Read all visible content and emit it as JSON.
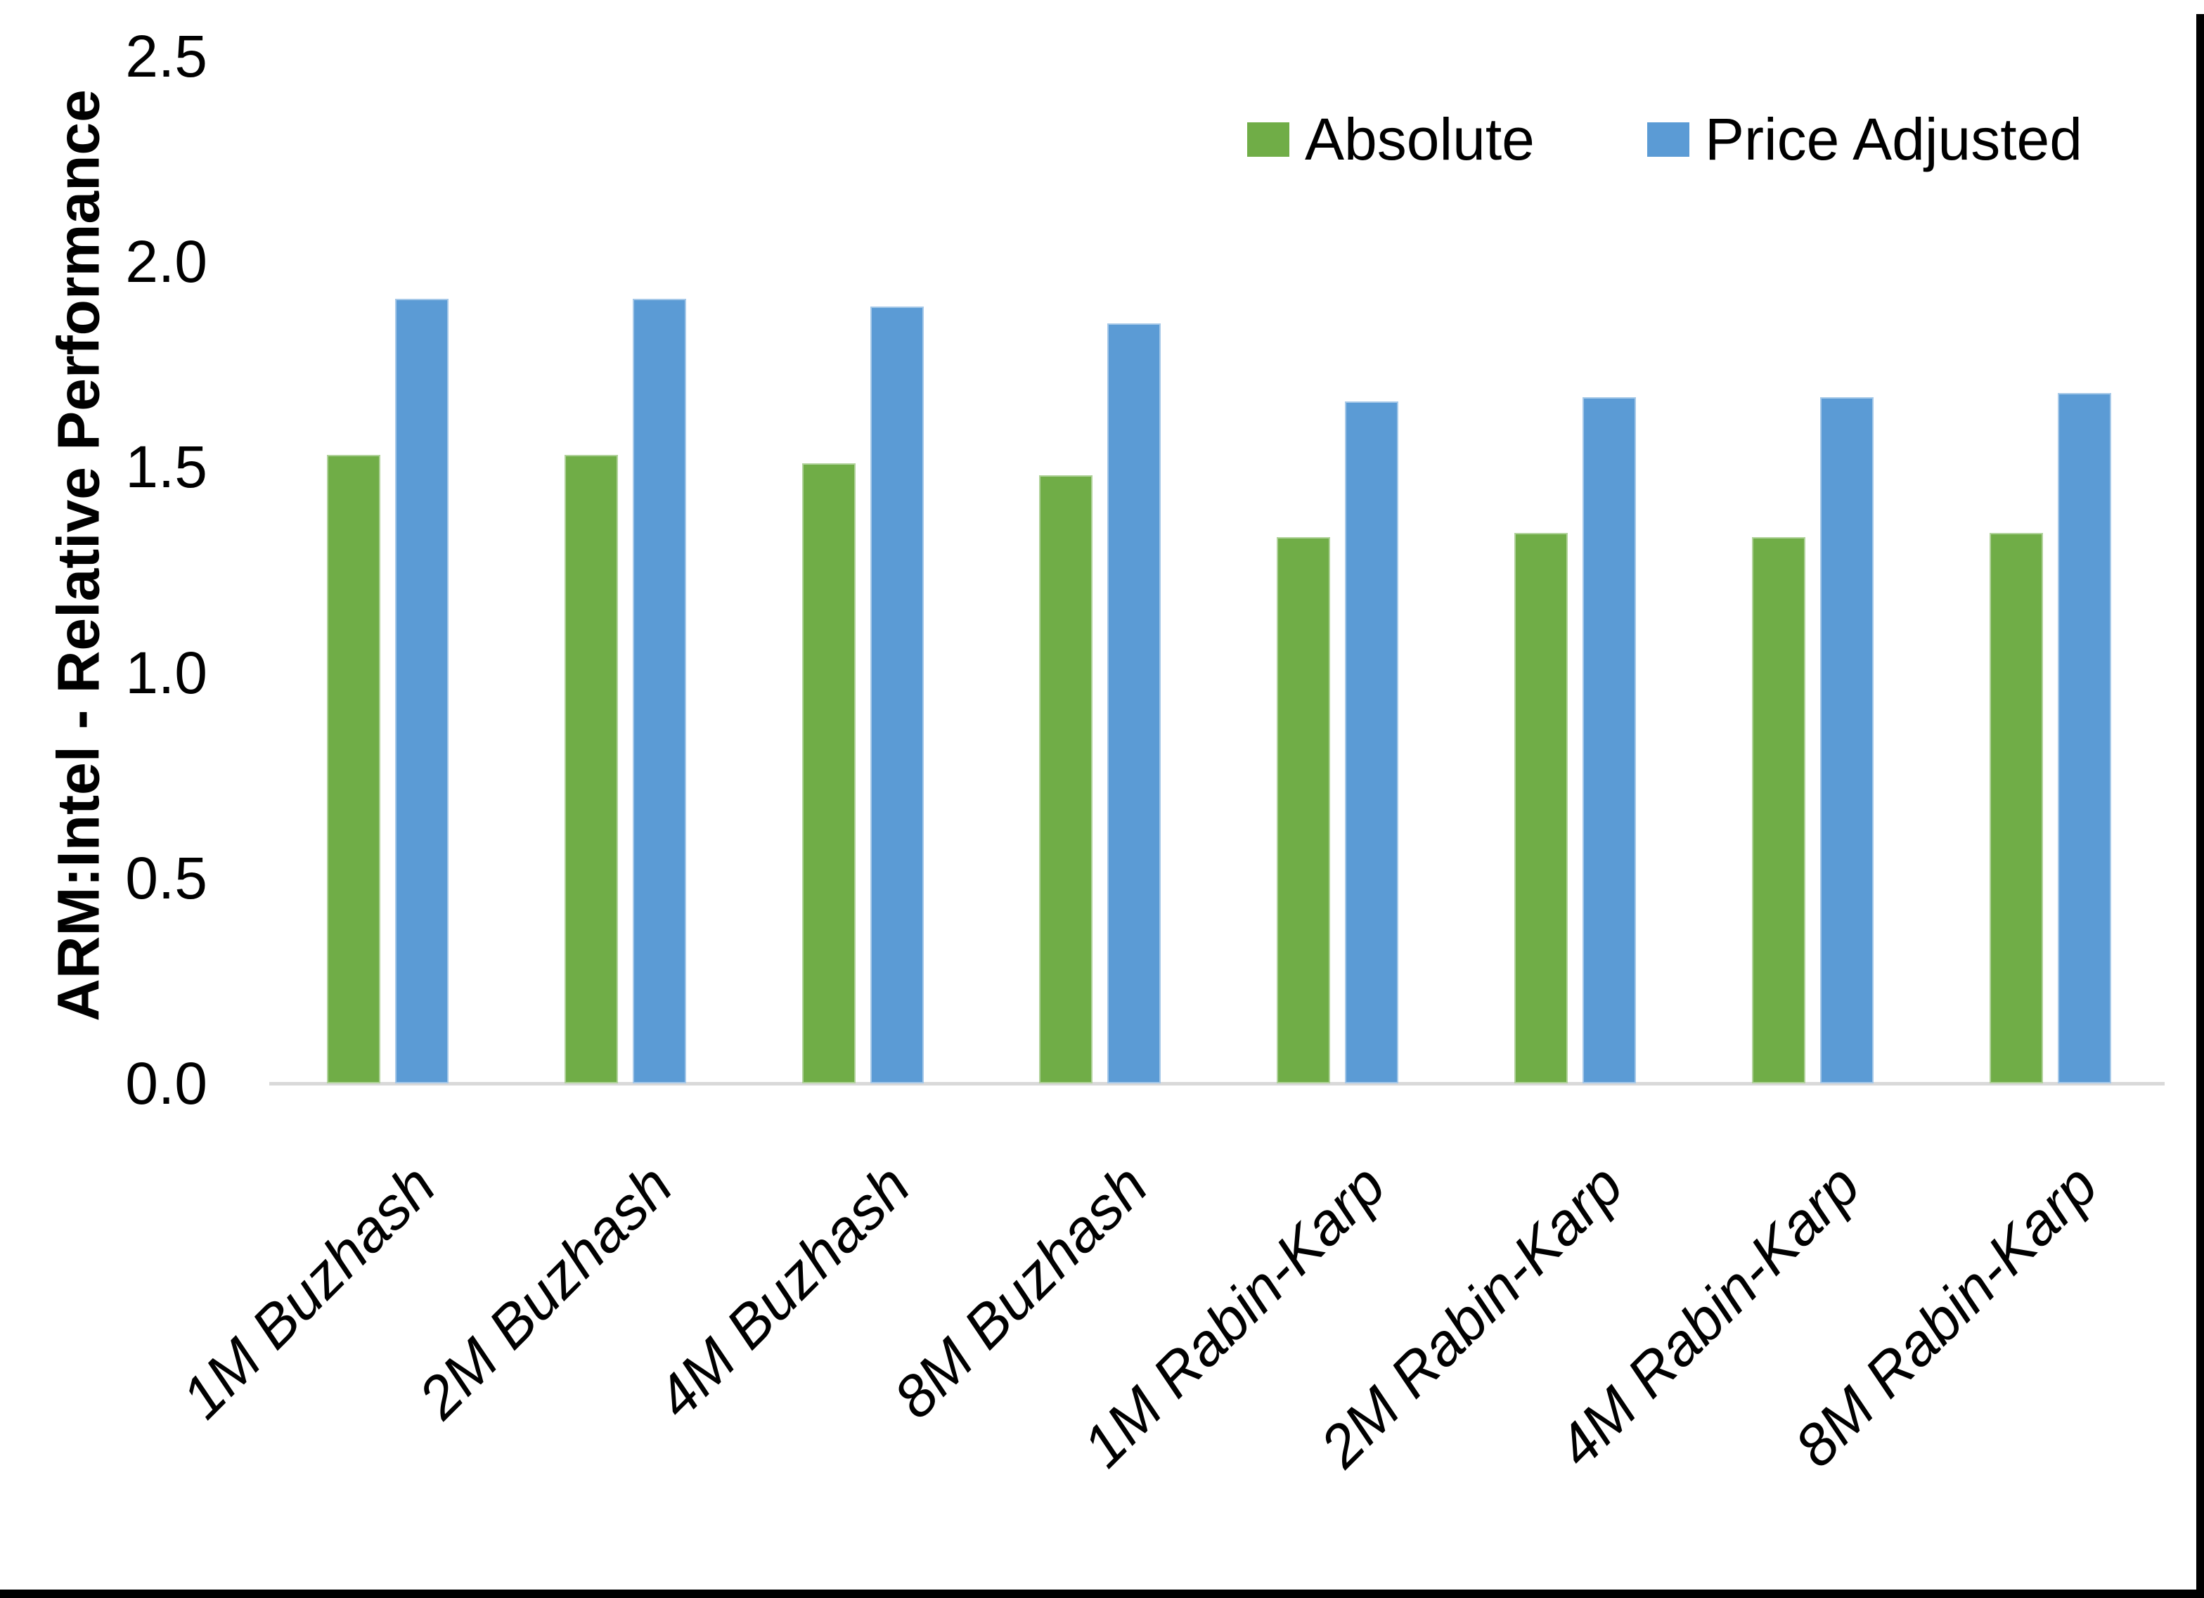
{
  "chart_data": {
    "type": "bar",
    "title": "",
    "xlabel": "",
    "ylabel": "ARM:Intel - Relative Performance",
    "ylim": [
      0,
      2.5
    ],
    "ytick_step": 0.5,
    "ytick_labels": [
      "0.0",
      "0.5",
      "1.0",
      "1.5",
      "2.0",
      "2.5"
    ],
    "grid": false,
    "legend_position": "top-right",
    "categories": [
      "1M Buzhash",
      "2M Buzhash",
      "4M Buzhash",
      "8M Buzhash",
      "1M Rabin-Karp",
      "2M Rabin-Karp",
      "4M Rabin-Karp",
      "8M Rabin-Karp"
    ],
    "series": [
      {
        "name": "Absolute",
        "color": "#70AD47",
        "values": [
          1.53,
          1.53,
          1.51,
          1.48,
          1.33,
          1.34,
          1.33,
          1.34
        ]
      },
      {
        "name": "Price Adjusted",
        "color": "#5B9BD5",
        "values": [
          1.91,
          1.91,
          1.89,
          1.85,
          1.66,
          1.67,
          1.67,
          1.68
        ]
      }
    ]
  },
  "colors": {
    "background": "#FFFFFF",
    "axis_line": "#D9D9D9",
    "text": "#000000",
    "capture_border": "#000000"
  }
}
